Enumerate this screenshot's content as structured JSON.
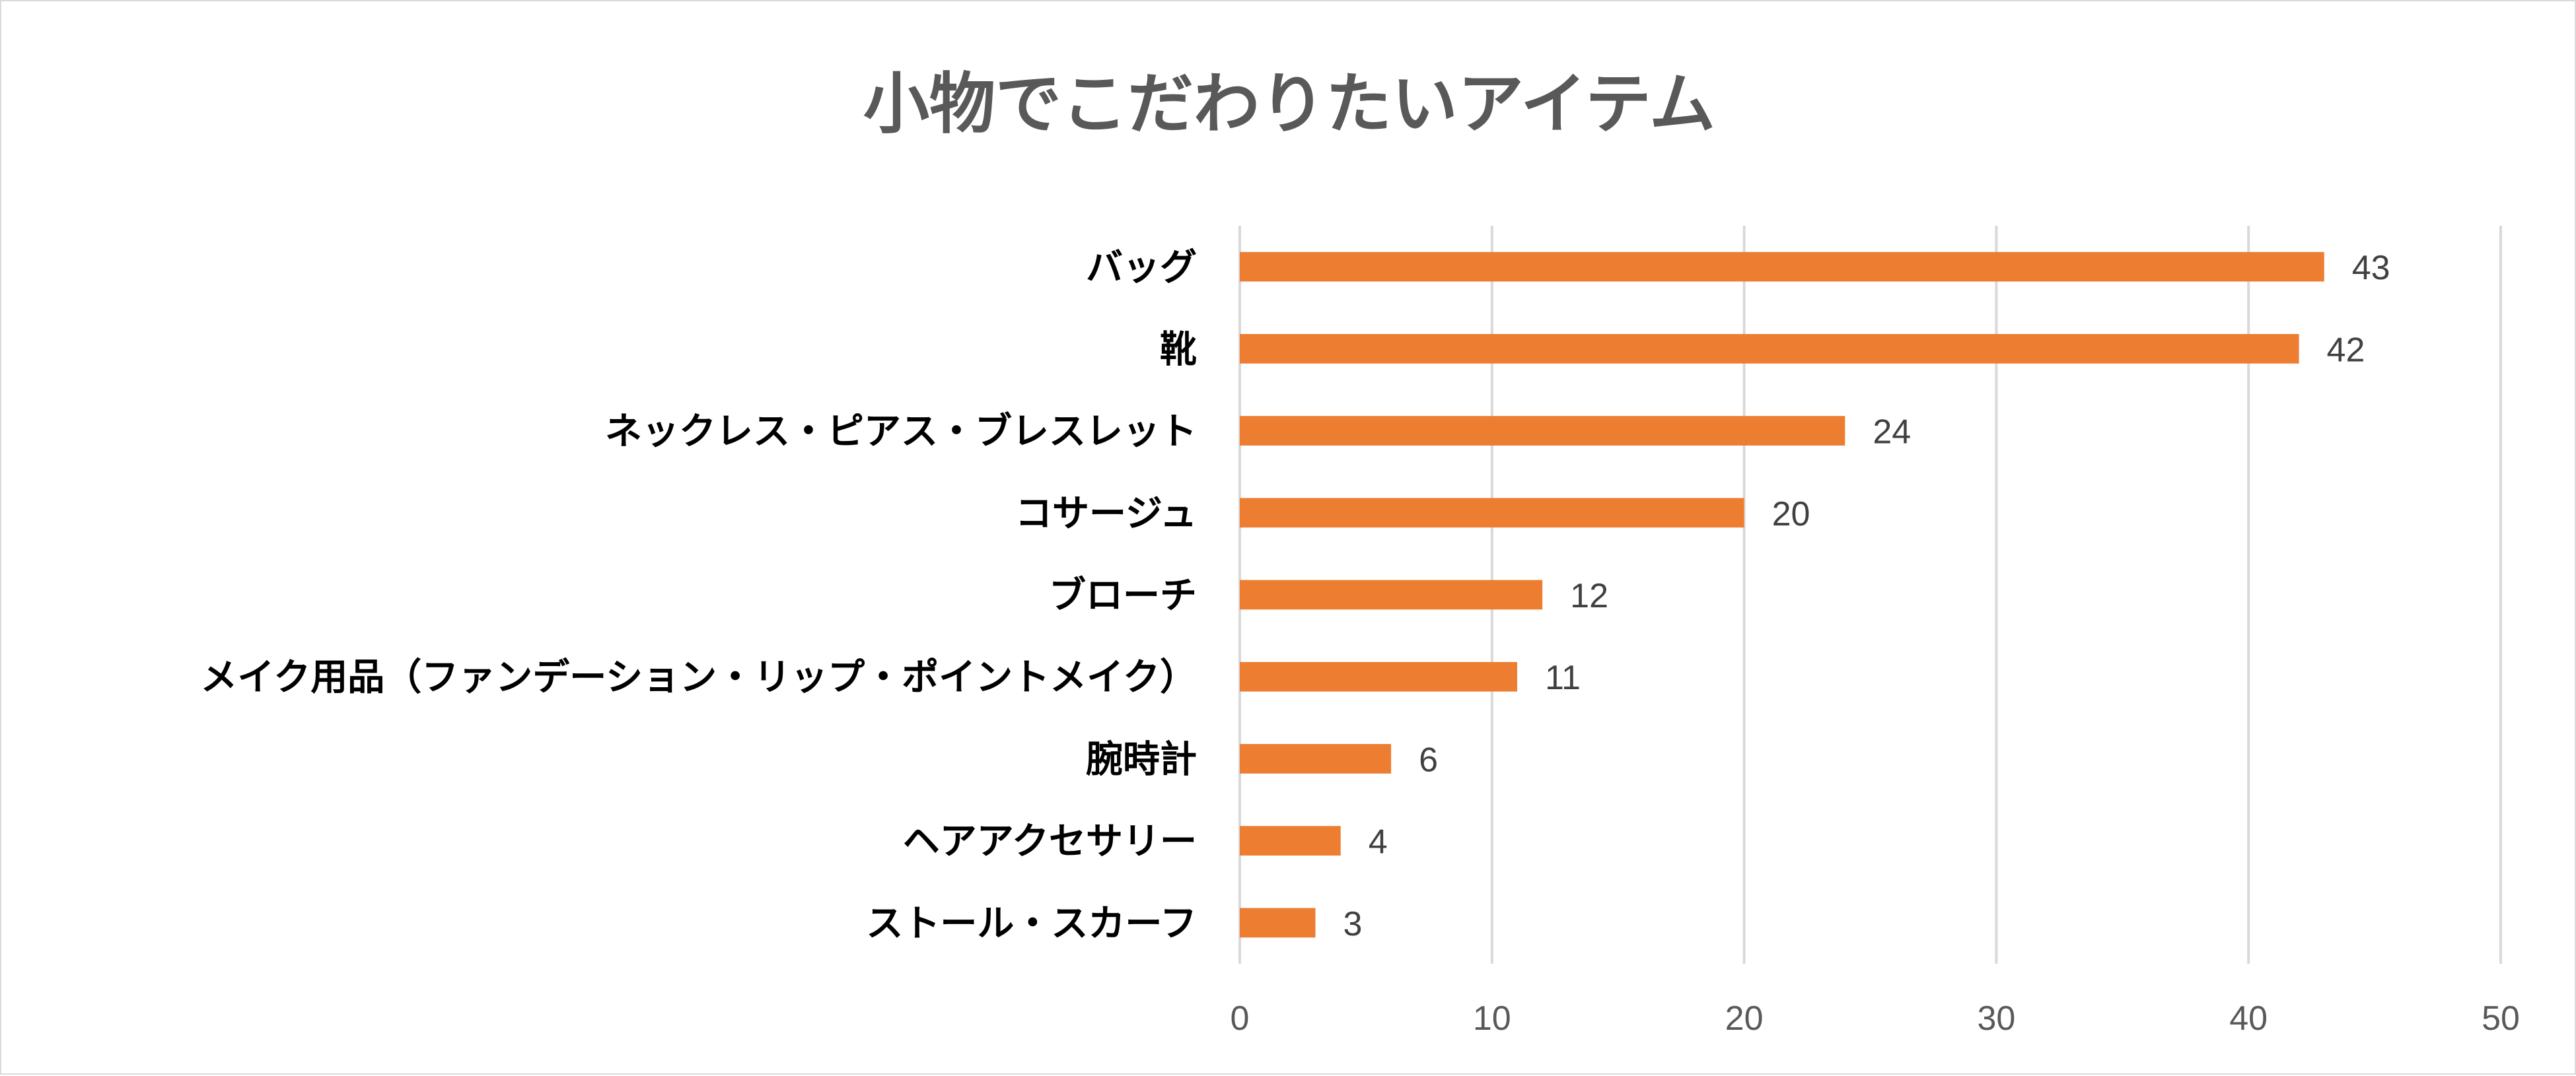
{
  "chart_data": {
    "type": "bar",
    "orientation": "horizontal",
    "title": "小物でこだわりたいアイテム",
    "categories": [
      "バッグ",
      "靴",
      "ネックレス・ピアス・ブレスレット",
      "コサージュ",
      "ブローチ",
      "メイク用品（ファンデーション・リップ・ポイントメイク）",
      "腕時計",
      "ヘアアクセサリー",
      "ストール・スカーフ"
    ],
    "values": [
      43,
      42,
      24,
      20,
      12,
      11,
      6,
      4,
      3
    ],
    "xlim": [
      0,
      50
    ],
    "xticks": [
      0,
      10,
      20,
      30,
      40,
      50
    ],
    "xlabel": "",
    "ylabel": "",
    "grid": "vertical",
    "legend": "none",
    "bar_color": "#ED7D31",
    "grid_color": "#D9D9D9"
  }
}
